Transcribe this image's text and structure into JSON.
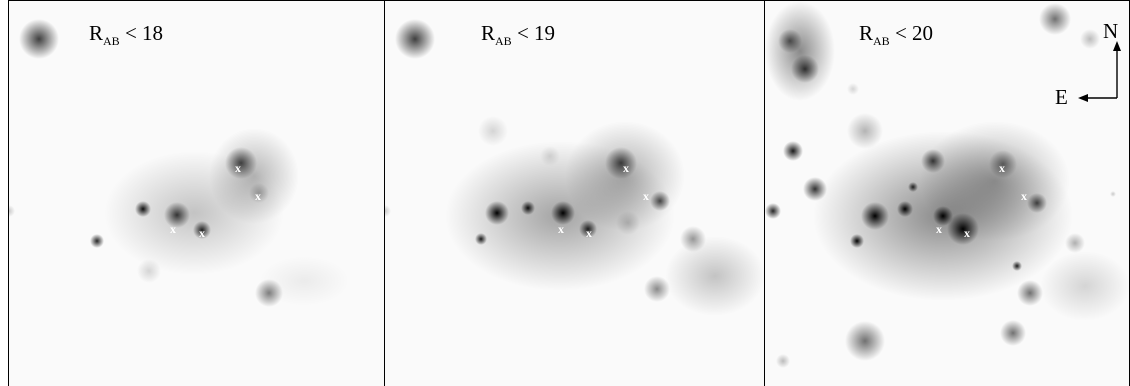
{
  "panels": [
    {
      "label_main": "R",
      "label_sub": "AB",
      "label_rest": " < 18"
    },
    {
      "label_main": "R",
      "label_sub": "AB",
      "label_rest": " < 19"
    },
    {
      "label_main": "R",
      "label_sub": "AB",
      "label_rest": " < 20"
    }
  ],
  "markers": {
    "symbol": "x"
  },
  "compass": {
    "north": "N",
    "east": "E"
  },
  "colors": {
    "background": "#fafafa",
    "border": "#000000",
    "marker": "#ffffff"
  }
}
